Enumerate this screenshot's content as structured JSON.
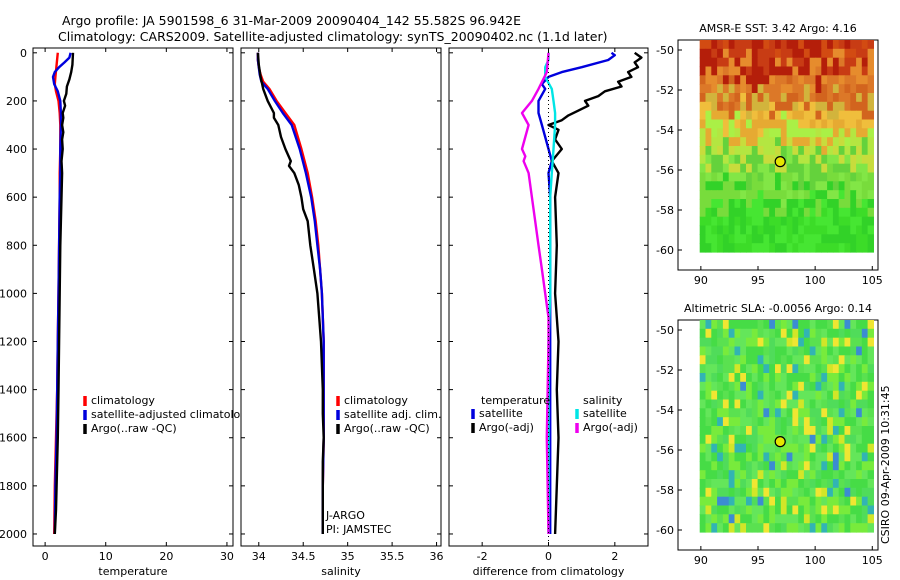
{
  "title_line1": "Argo profile: JA 5901598_6 31-Mar-2009 20090404_142 55.582S 96.942E",
  "title_line2": "Climatology: CARS2009. Satellite-adjusted climatology: synTS_20090402.nc (1.1d later)",
  "footer_credit": "CSIRO 09-Apr-2009 10:31:45",
  "colors": {
    "climatology": "#ff0000",
    "satellite": "#0000dd",
    "argo": "#000000",
    "cyan": "#00e5e5",
    "magenta": "#ee00ee"
  },
  "chart_data": [
    {
      "type": "line",
      "id": "temperature",
      "xlabel": "temperature",
      "ylabel": "",
      "xlim": [
        -2,
        31
      ],
      "ylim": [
        2050,
        -20
      ],
      "xticks": [
        0,
        10,
        20,
        30
      ],
      "yticks": [
        0,
        200,
        400,
        600,
        800,
        1000,
        1200,
        1400,
        1600,
        1800,
        2000
      ],
      "legend": [
        "climatology",
        "satellite-adjusted climatology",
        "Argo(..raw -QC)"
      ],
      "series": [
        {
          "name": "climatology",
          "color": "#ff0000",
          "x": [
            2.1,
            2.0,
            1.9,
            1.8,
            1.7,
            1.6,
            1.8,
            2.2,
            2.4,
            2.5,
            2.5,
            2.4,
            2.4,
            2.3,
            2.2,
            2.1,
            2.0,
            1.9,
            1.8,
            1.7,
            1.6,
            1.5
          ],
          "y": [
            0,
            25,
            50,
            75,
            100,
            130,
            160,
            200,
            250,
            300,
            400,
            500,
            600,
            800,
            1000,
            1200,
            1400,
            1500,
            1600,
            1700,
            1800,
            2000
          ]
        },
        {
          "name": "satellite-adjusted climatology",
          "color": "#0000dd",
          "x": [
            4.2,
            4.0,
            3.2,
            2.3,
            1.6,
            1.3,
            1.5,
            2.1,
            2.5,
            2.6,
            2.6,
            2.5,
            2.5,
            2.4,
            2.3,
            2.2,
            2.1,
            2.0,
            1.9,
            1.8,
            1.7,
            1.6
          ],
          "y": [
            0,
            20,
            40,
            60,
            80,
            100,
            130,
            160,
            200,
            250,
            300,
            400,
            500,
            600,
            800,
            1000,
            1200,
            1400,
            1600,
            1700,
            1800,
            2000
          ]
        },
        {
          "name": "Argo(..raw -QC)",
          "color": "#000000",
          "x": [
            4.6,
            4.5,
            4.3,
            4.0,
            3.6,
            3.5,
            3.1,
            3.3,
            2.9,
            3.0,
            2.8,
            3.0,
            2.8,
            2.9,
            2.7,
            2.8,
            2.7,
            2.6,
            2.5,
            2.4,
            2.3,
            2.2,
            2.1,
            2.0,
            1.9,
            1.8,
            1.6
          ],
          "y": [
            0,
            50,
            80,
            110,
            140,
            170,
            200,
            220,
            250,
            270,
            300,
            330,
            360,
            400,
            450,
            500,
            600,
            700,
            800,
            1000,
            1200,
            1400,
            1600,
            1700,
            1800,
            1900,
            2000
          ]
        }
      ]
    },
    {
      "type": "line",
      "id": "salinity",
      "xlabel": "salinity",
      "ylabel": "",
      "xlim": [
        33.8,
        36.05
      ],
      "ylim": [
        2050,
        -20
      ],
      "xticks": [
        34,
        34.5,
        35,
        35.5,
        36
      ],
      "yticks": [
        0,
        200,
        400,
        600,
        800,
        1000,
        1200,
        1400,
        1600,
        1800,
        2000
      ],
      "legend": [
        "climatology",
        "satellite adj. clim.",
        "Argo(..raw -QC)"
      ],
      "annotations": [
        "J-ARGO",
        "PI: JAMSTEC"
      ],
      "series": [
        {
          "name": "climatology",
          "color": "#ff0000",
          "x": [
            33.99,
            33.99,
            34.0,
            34.02,
            34.05,
            34.12,
            34.2,
            34.3,
            34.4,
            34.48,
            34.55,
            34.6,
            34.64,
            34.67,
            34.69,
            34.71,
            34.72,
            34.73,
            34.73,
            34.73,
            34.72,
            34.72,
            34.72
          ],
          "y": [
            0,
            30,
            60,
            90,
            120,
            150,
            200,
            250,
            300,
            400,
            500,
            600,
            700,
            800,
            900,
            1000,
            1100,
            1200,
            1400,
            1600,
            1800,
            1900,
            2000
          ]
        },
        {
          "name": "satellite adj. clim.",
          "color": "#0000dd",
          "x": [
            33.99,
            33.99,
            34.0,
            34.01,
            34.03,
            34.1,
            34.18,
            34.27,
            34.37,
            34.46,
            34.53,
            34.59,
            34.63,
            34.66,
            34.69,
            34.71,
            34.72,
            34.73,
            34.73,
            34.73,
            34.72,
            34.72,
            34.72
          ],
          "y": [
            0,
            30,
            60,
            90,
            120,
            150,
            200,
            250,
            300,
            400,
            500,
            600,
            700,
            800,
            900,
            1000,
            1100,
            1200,
            1400,
            1600,
            1800,
            1900,
            2000
          ]
        },
        {
          "name": "Argo(..raw -QC)",
          "color": "#000000",
          "x": [
            33.99,
            34.0,
            34.02,
            34.05,
            34.1,
            34.17,
            34.17,
            34.22,
            34.25,
            34.3,
            34.36,
            34.34,
            34.4,
            34.45,
            34.48,
            34.5,
            34.55,
            34.58,
            34.62,
            34.66,
            34.68,
            34.7,
            34.71,
            34.72,
            34.72,
            34.73,
            34.72,
            34.72,
            34.72
          ],
          "y": [
            0,
            50,
            100,
            150,
            200,
            250,
            270,
            300,
            350,
            400,
            450,
            470,
            500,
            550,
            600,
            650,
            700,
            800,
            900,
            1000,
            1100,
            1200,
            1300,
            1400,
            1500,
            1600,
            1700,
            1800,
            2000
          ]
        }
      ]
    },
    {
      "type": "line",
      "id": "difference",
      "xlabel": "difference from climatology",
      "ylabel": "",
      "xlim": [
        -3.0,
        3.0
      ],
      "ylim": [
        2050,
        -20
      ],
      "xticks": [
        -2,
        0,
        2
      ],
      "yticks": [
        0,
        200,
        400,
        600,
        800,
        1000,
        1200,
        1400,
        1600,
        1800,
        2000
      ],
      "legend_left_title": "temperature",
      "legend_right_title": "salinity",
      "legend": [
        "satellite",
        "Argo(-adj)",
        "satellite",
        "Argo(-adj)"
      ],
      "series": [
        {
          "name": "temperature satellite",
          "color": "#0000dd",
          "x": [
            1.9,
            2.0,
            1.8,
            1.0,
            0.4,
            0.0,
            -0.2,
            -0.1,
            -0.3,
            -0.3,
            -0.2,
            -0.1,
            0.0,
            0.1,
            0.0,
            0.05,
            0.05,
            0.05,
            0.05,
            0.05
          ],
          "y": [
            0,
            10,
            30,
            60,
            80,
            100,
            130,
            150,
            200,
            250,
            300,
            350,
            400,
            450,
            500,
            600,
            800,
            1000,
            1500,
            2000
          ]
        },
        {
          "name": "temperature Argo(-adj)",
          "color": "#000000",
          "x": [
            2.6,
            2.8,
            2.6,
            2.7,
            2.4,
            2.5,
            2.1,
            2.2,
            1.7,
            1.5,
            1.1,
            1.2,
            0.9,
            0.6,
            0.4,
            0.0,
            0.3,
            0.2,
            0.4,
            0.1,
            0.3,
            0.2,
            0.25,
            0.2,
            0.3,
            0.25,
            0.3,
            0.25,
            0.2
          ],
          "y": [
            0,
            20,
            40,
            60,
            80,
            100,
            120,
            140,
            160,
            180,
            200,
            220,
            240,
            260,
            280,
            300,
            320,
            360,
            400,
            450,
            500,
            600,
            800,
            1000,
            1200,
            1400,
            1600,
            1800,
            2000
          ]
        },
        {
          "name": "salinity satellite",
          "color": "#00e5e5",
          "x": [
            0.0,
            0.0,
            -0.1,
            -0.1,
            0.1,
            0.15,
            0.2,
            0.2,
            0.15,
            0.1,
            0.05,
            0.05,
            0.05,
            0.0,
            0.0,
            0.0,
            0.0,
            0.0
          ],
          "y": [
            0,
            30,
            60,
            100,
            150,
            200,
            250,
            300,
            400,
            500,
            600,
            800,
            1000,
            1200,
            1400,
            1600,
            1800,
            2000
          ]
        },
        {
          "name": "salinity Argo(-adj)",
          "color": "#ee00ee",
          "x": [
            0.0,
            -0.05,
            -0.3,
            -0.5,
            -0.8,
            -0.6,
            -0.7,
            -0.8,
            -0.7,
            -0.75,
            -0.6,
            -0.5,
            -0.4,
            -0.3,
            -0.2,
            -0.1,
            0.0,
            0.0,
            -0.05,
            0.0
          ],
          "y": [
            0,
            80,
            150,
            200,
            250,
            300,
            350,
            400,
            430,
            450,
            500,
            600,
            700,
            800,
            900,
            1000,
            1100,
            1200,
            1600,
            2000
          ]
        }
      ]
    },
    {
      "type": "heatmap",
      "id": "sst_map",
      "title": "AMSR-E SST: 3.42  Argo: 4.16",
      "xlim": [
        88,
        105.5
      ],
      "ylim": [
        -61,
        -49.5
      ],
      "xticks": [
        90,
        95,
        100,
        105
      ],
      "yticks": [
        -50,
        -52,
        -54,
        -56,
        -58,
        -60
      ],
      "marker": {
        "lon": 96.942,
        "lat": -55.582
      }
    },
    {
      "type": "heatmap",
      "id": "sla_map",
      "title": "Altimetric SLA: -0.0056  Argo: 0.14",
      "xlim": [
        88,
        105.5
      ],
      "ylim": [
        -61,
        -49.5
      ],
      "xticks": [
        90,
        95,
        100,
        105
      ],
      "yticks": [
        -50,
        -52,
        -54,
        -56,
        -58,
        -60
      ],
      "marker": {
        "lon": 96.942,
        "lat": -55.582
      }
    }
  ]
}
